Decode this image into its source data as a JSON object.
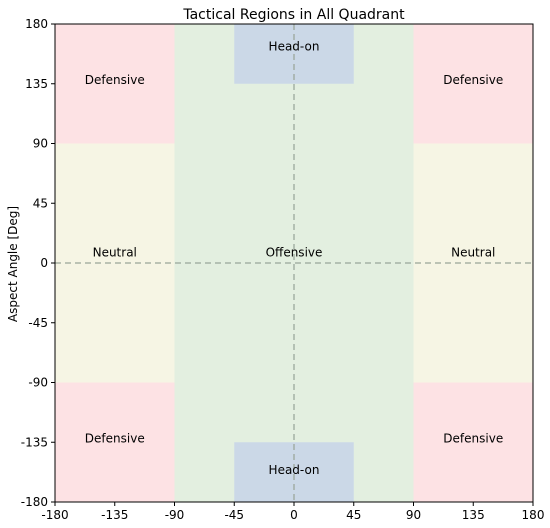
{
  "chart_data": {
    "type": "heatmap",
    "title": "Tactical Regions in All Quadrant",
    "xlabel": "",
    "ylabel": "Aspect Angle [Deg]",
    "xlim": [
      -180,
      180
    ],
    "ylim": [
      -180,
      180
    ],
    "x_ticks": [
      -180,
      -135,
      -90,
      -45,
      0,
      45,
      90,
      135,
      180
    ],
    "y_ticks": [
      -180,
      -135,
      -90,
      -45,
      0,
      45,
      90,
      135,
      180
    ],
    "grid": false,
    "reference_lines": [
      {
        "orientation": "horizontal",
        "value": 0,
        "style": "dashed"
      },
      {
        "orientation": "vertical",
        "value": 0,
        "style": "dashed"
      }
    ],
    "regions": [
      {
        "name": "Offensive",
        "x": [
          -90,
          90
        ],
        "y": [
          -180,
          180
        ],
        "color": "#e3efe0",
        "label": "Offensive",
        "label_at": [
          0,
          8
        ]
      },
      {
        "name": "Neutral",
        "x": [
          -180,
          -90
        ],
        "y": [
          -90,
          90
        ],
        "color": "#f6f5e4",
        "label": "Neutral",
        "label_at": [
          -135,
          8
        ]
      },
      {
        "name": "Neutral",
        "x": [
          90,
          180
        ],
        "y": [
          -90,
          90
        ],
        "color": "#f6f5e4",
        "label": "Neutral",
        "label_at": [
          135,
          8
        ]
      },
      {
        "name": "Defensive",
        "x": [
          -180,
          -90
        ],
        "y": [
          90,
          180
        ],
        "color": "#fde2e4",
        "label": "Defensive",
        "label_at": [
          -135,
          138
        ]
      },
      {
        "name": "Defensive",
        "x": [
          90,
          180
        ],
        "y": [
          90,
          180
        ],
        "color": "#fde2e4",
        "label": "Defensive",
        "label_at": [
          135,
          138
        ]
      },
      {
        "name": "Defensive",
        "x": [
          -180,
          -90
        ],
        "y": [
          -180,
          -90
        ],
        "color": "#fde2e4",
        "label": "Defensive",
        "label_at": [
          -135,
          -132
        ]
      },
      {
        "name": "Defensive",
        "x": [
          90,
          180
        ],
        "y": [
          -180,
          -90
        ],
        "color": "#fde2e4",
        "label": "Defensive",
        "label_at": [
          135,
          -132
        ]
      },
      {
        "name": "Head-on",
        "x": [
          -45,
          45
        ],
        "y": [
          135,
          180
        ],
        "color": "#cbd8e7",
        "label": "Head-on",
        "label_at": [
          0,
          163
        ]
      },
      {
        "name": "Head-on",
        "x": [
          -45,
          45
        ],
        "y": [
          -180,
          -135
        ],
        "color": "#cbd8e7",
        "label": "Head-on",
        "label_at": [
          0,
          -156
        ]
      }
    ]
  }
}
